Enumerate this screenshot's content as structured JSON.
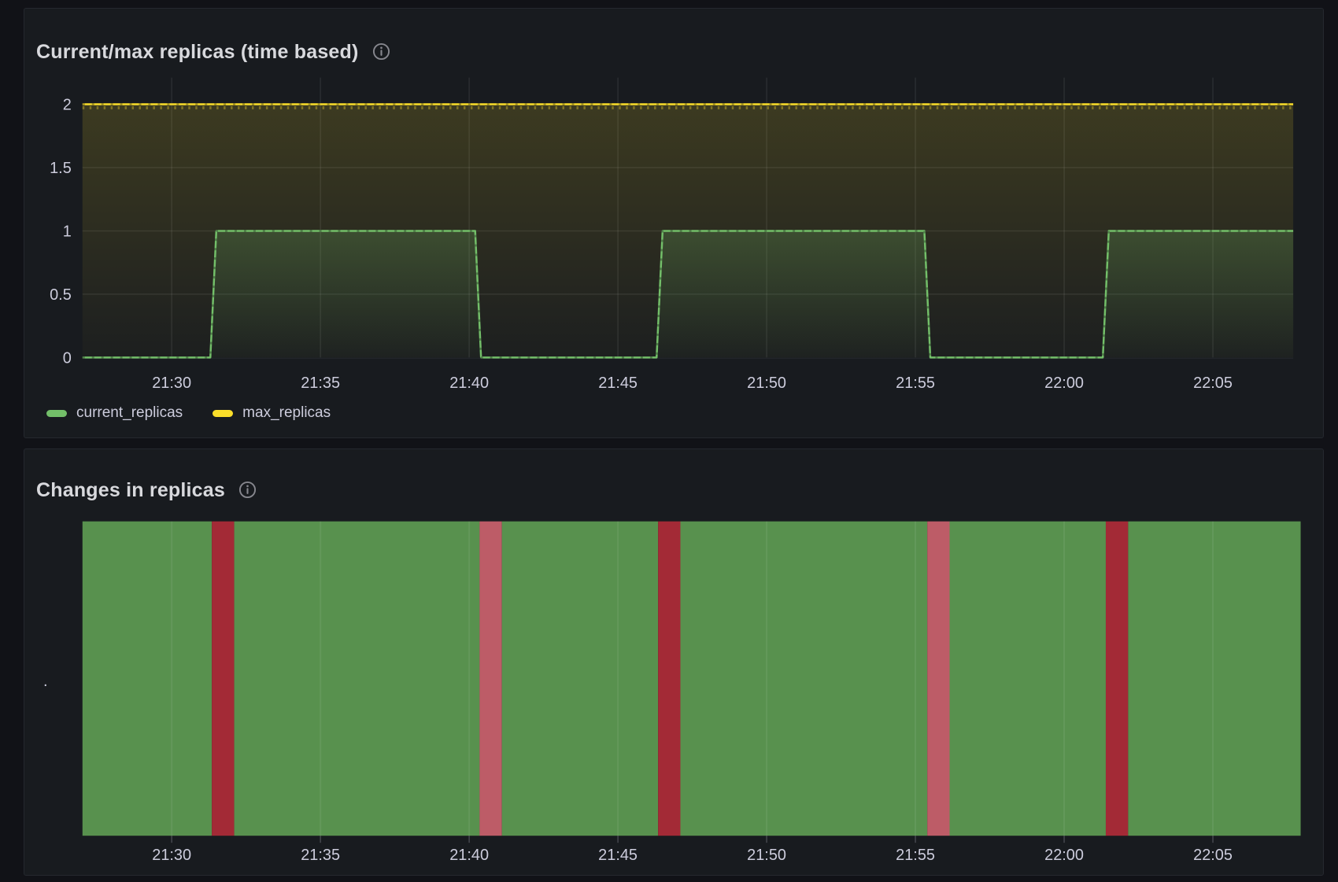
{
  "theme": {
    "page_bg": "#111217",
    "panel_bg": "#181b1f",
    "panel_border": "#25282e",
    "title_color": "#d8d9dd",
    "axis_text_color": "#ccccdc",
    "grid_color": "rgba(204,204,220,0.10)"
  },
  "chart_data": [
    {
      "type": "line",
      "title": "Current/max replicas (time based)",
      "info_icon": "info-circle",
      "legend_position": "bottom",
      "x_axis": {
        "unit": "time",
        "window_start": "21:27",
        "window_end": "22:08",
        "ticks": [
          {
            "t": 30,
            "label": "21:30"
          },
          {
            "t": 35,
            "label": "21:35"
          },
          {
            "t": 40,
            "label": "21:40"
          },
          {
            "t": 45,
            "label": "21:45"
          },
          {
            "t": 50,
            "label": "21:50"
          },
          {
            "t": 55,
            "label": "21:55"
          },
          {
            "t": 60,
            "label": "22:00"
          },
          {
            "t": 65,
            "label": "22:05"
          }
        ]
      },
      "y_axis": {
        "min": 0,
        "max": 2,
        "ticks": [
          {
            "v": 0,
            "label": "0"
          },
          {
            "v": 0.5,
            "label": "0.5"
          },
          {
            "v": 1,
            "label": "1"
          },
          {
            "v": 1.5,
            "label": "1.5"
          },
          {
            "v": 2,
            "label": "2"
          }
        ]
      },
      "series": [
        {
          "name": "current_replicas",
          "color": "#73BF69",
          "fill_top_opacity": 0.22,
          "points_minutes_after_2100": [
            [
              27,
              0
            ],
            [
              31.3,
              0
            ],
            [
              31.5,
              1
            ],
            [
              40.2,
              1
            ],
            [
              40.4,
              0
            ],
            [
              46.3,
              0
            ],
            [
              46.5,
              1
            ],
            [
              55.3,
              1
            ],
            [
              55.5,
              0
            ],
            [
              61.3,
              0
            ],
            [
              61.5,
              1
            ],
            [
              67.7,
              1
            ]
          ]
        },
        {
          "name": "max_replicas",
          "color": "#FADE2A",
          "fill_top_opacity": 0.16,
          "points_minutes_after_2100": [
            [
              27,
              2
            ],
            [
              67.7,
              2
            ]
          ]
        }
      ]
    },
    {
      "type": "state-timeline",
      "title": "Changes in replicas",
      "info_icon": "info-circle",
      "row_label": ".",
      "x_axis": {
        "unit": "time",
        "window_start": "21:27",
        "window_end": "22:08",
        "ticks": [
          {
            "t": 30,
            "label": "21:30"
          },
          {
            "t": 35,
            "label": "21:35"
          },
          {
            "t": 40,
            "label": "21:40"
          },
          {
            "t": 45,
            "label": "21:45"
          },
          {
            "t": 50,
            "label": "21:50"
          },
          {
            "t": 55,
            "label": "21:55"
          },
          {
            "t": 60,
            "label": "22:00"
          },
          {
            "t": 65,
            "label": "22:05"
          }
        ]
      },
      "state_colors": {
        "steady": "#58914E",
        "change_strong": "#A32A36",
        "change_soft": "#BD5C67"
      },
      "segments_minutes_after_2100": [
        {
          "start": 27.0,
          "end": 31.35,
          "color": "#58914E"
        },
        {
          "start": 31.35,
          "end": 32.1,
          "color": "#A32A36"
        },
        {
          "start": 32.1,
          "end": 40.35,
          "color": "#58914E"
        },
        {
          "start": 40.35,
          "end": 41.1,
          "color": "#BD5C67"
        },
        {
          "start": 41.1,
          "end": 46.35,
          "color": "#58914E"
        },
        {
          "start": 46.35,
          "end": 47.1,
          "color": "#A32A36"
        },
        {
          "start": 47.1,
          "end": 55.4,
          "color": "#58914E"
        },
        {
          "start": 55.4,
          "end": 56.15,
          "color": "#BD5C67"
        },
        {
          "start": 56.15,
          "end": 61.4,
          "color": "#58914E"
        },
        {
          "start": 61.4,
          "end": 62.15,
          "color": "#A32A36"
        },
        {
          "start": 62.15,
          "end": 67.95,
          "color": "#58914E"
        }
      ]
    }
  ]
}
